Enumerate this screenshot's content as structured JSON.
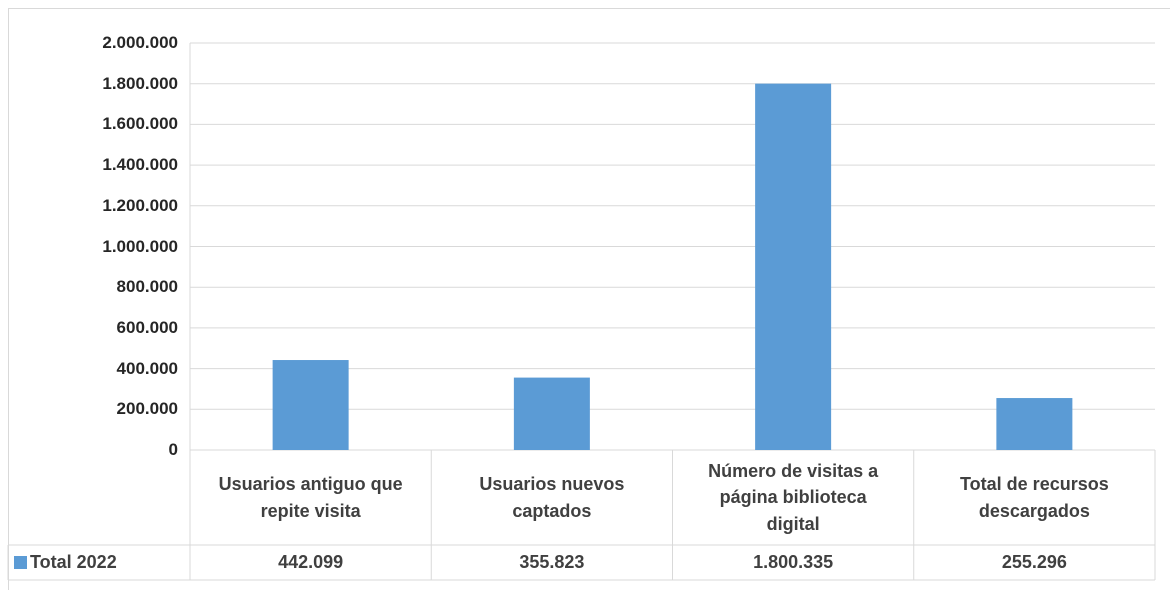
{
  "chart_data": {
    "type": "bar",
    "categories": [
      "Usuarios antiguo que repite visita",
      "Usuarios nuevos captados",
      "Número de visitas a página biblioteca digital",
      "Total de recursos descargados"
    ],
    "series": [
      {
        "name": "Total 2022",
        "color": "#5b9bd5",
        "values": [
          442099,
          355823,
          1800335,
          255296
        ],
        "value_labels": [
          "442.099",
          "355.823",
          "1.800.335",
          "255.296"
        ]
      }
    ],
    "ylim": [
      0,
      2000000
    ],
    "yticks": [
      0,
      {
        "value": 200000,
        "label": "200.000"
      },
      {
        "value": 400000,
        "label": "400.000"
      },
      {
        "value": 600000,
        "label": "600.000"
      },
      {
        "value": 800000,
        "label": "800.000"
      },
      {
        "value": 1000000,
        "label": "1.000.000"
      },
      {
        "value": 1200000,
        "label": "1.200.000"
      },
      {
        "value": 1400000,
        "label": "1.400.000"
      },
      {
        "value": 1600000,
        "label": "1.600.000"
      },
      {
        "value": 1800000,
        "label": "1.800.000"
      },
      {
        "value": 2000000,
        "label": "2.000.000"
      }
    ],
    "grid": true
  }
}
